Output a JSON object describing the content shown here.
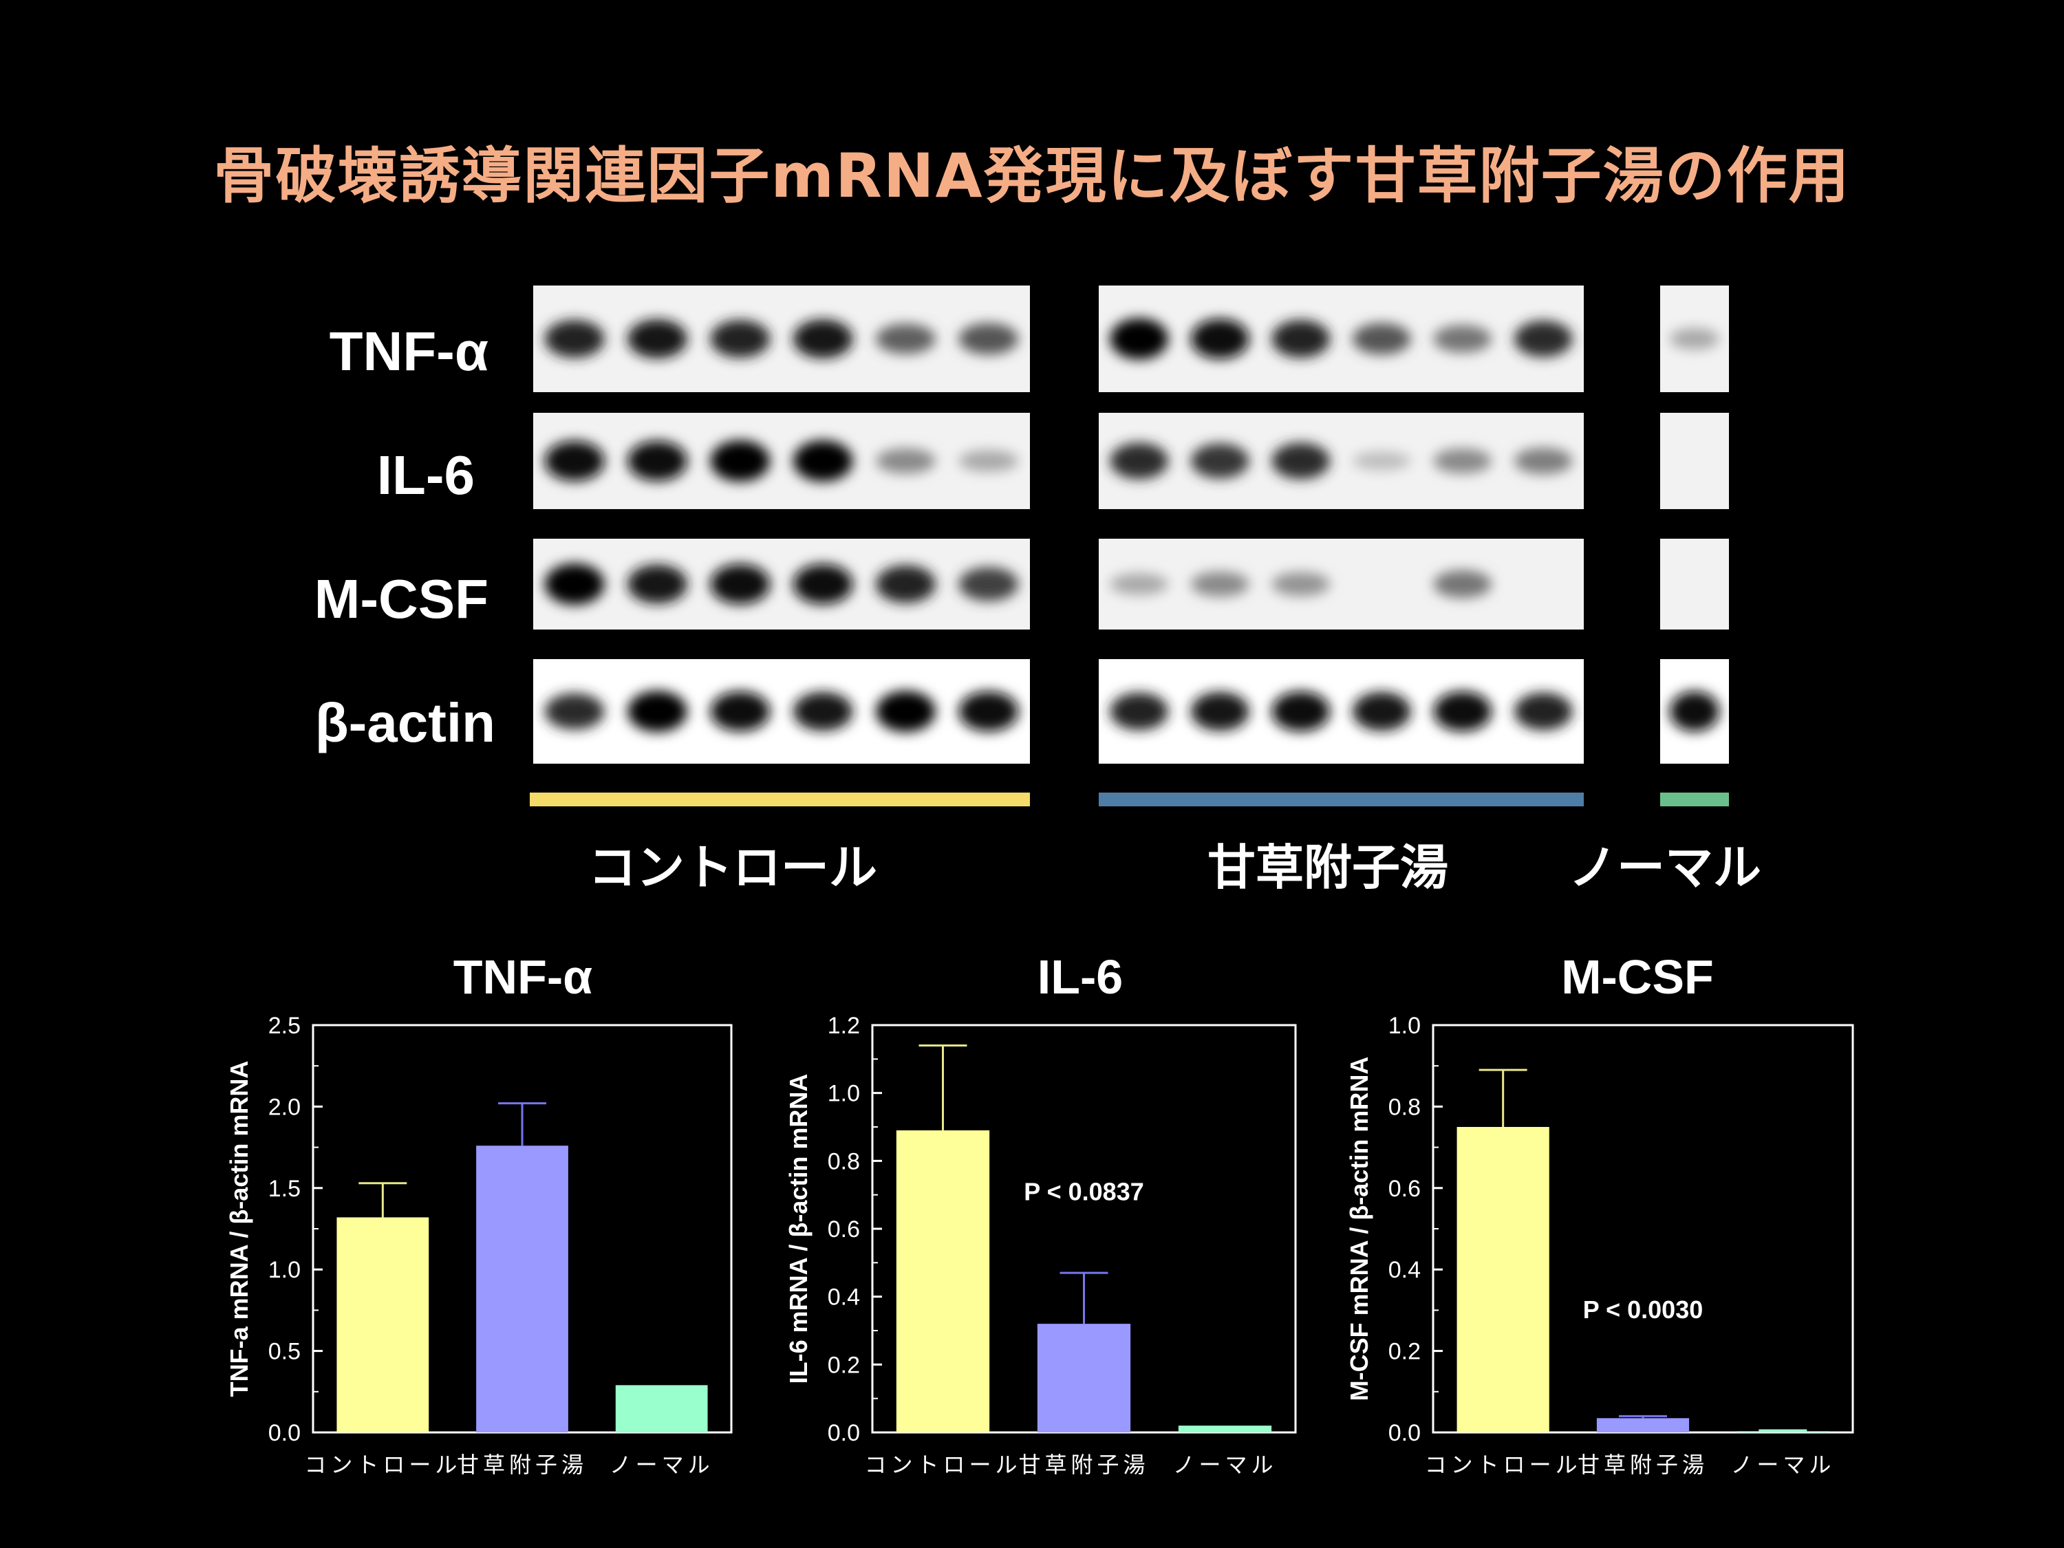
{
  "title": "骨破壊誘導関連因子mRNA発現に及ぼす甘草附子湯の作用",
  "blot": {
    "rows": [
      "TNF-α",
      "IL-6",
      "M-CSF",
      "β-actin"
    ],
    "groups": [
      {
        "label": "コントロール",
        "color": "#f5dc6a"
      },
      {
        "label": "甘草附子湯",
        "color": "#4e7ea5"
      },
      {
        "label": "ノーマル",
        "color": "#6bc089"
      }
    ],
    "band_intensity": {
      "TNF-α": {
        "control": [
          0.85,
          0.9,
          0.85,
          0.9,
          0.55,
          0.6
        ],
        "kanzo": [
          1.0,
          0.95,
          0.85,
          0.6,
          0.45,
          0.8
        ],
        "normal": [
          0.2
        ]
      },
      "IL-6": {
        "control": [
          0.95,
          0.95,
          1.0,
          1.0,
          0.35,
          0.2
        ],
        "kanzo": [
          0.8,
          0.75,
          0.8,
          0.1,
          0.35,
          0.4
        ],
        "normal": [
          0.0
        ]
      },
      "M-CSF": {
        "control": [
          1.0,
          0.9,
          0.95,
          0.95,
          0.85,
          0.7
        ],
        "kanzo": [
          0.2,
          0.35,
          0.3,
          0.0,
          0.45,
          0.0
        ],
        "normal": [
          0.0
        ]
      },
      "β-actin": {
        "control": [
          0.8,
          1.0,
          0.95,
          0.9,
          1.0,
          0.95
        ],
        "kanzo": [
          0.85,
          0.9,
          0.95,
          0.9,
          0.95,
          0.85
        ],
        "normal": [
          0.95
        ]
      }
    }
  },
  "chart_data": [
    {
      "type": "bar",
      "title": "TNF-α",
      "ylabel": "TNF-a mRNA / β-actin mRNA",
      "categories": [
        "コントロール",
        "甘草附子湯",
        "ノーマル"
      ],
      "values": [
        1.32,
        1.76,
        0.29
      ],
      "errors": [
        0.21,
        0.26,
        0
      ],
      "colors": [
        "#ffff99",
        "#9999ff",
        "#99ffcc"
      ],
      "ylim": [
        0,
        2.5
      ],
      "yticks": [
        "0.0",
        "0.5",
        "1.0",
        "1.5",
        "2.0",
        "2.5"
      ],
      "annotation": ""
    },
    {
      "type": "bar",
      "title": "IL-6",
      "ylabel": "IL-6 mRNA / β-actin mRNA",
      "categories": [
        "コントロール",
        "甘草附子湯",
        "ノーマル"
      ],
      "values": [
        0.89,
        0.32,
        0.02
      ],
      "errors": [
        0.25,
        0.15,
        0
      ],
      "colors": [
        "#ffff99",
        "#9999ff",
        "#99ffcc"
      ],
      "ylim": [
        0,
        1.2
      ],
      "yticks": [
        "0.0",
        "0.2",
        "0.4",
        "0.6",
        "0.8",
        "1.0",
        "1.2"
      ],
      "annotation": "P < 0.0837"
    },
    {
      "type": "bar",
      "title": "M-CSF",
      "ylabel": "M-CSF mRNA / β-actin mRNA",
      "categories": [
        "コントロール",
        "甘草附子湯",
        "ノーマル"
      ],
      "values": [
        0.75,
        0.035,
        0.003
      ],
      "errors": [
        0.14,
        0.005,
        0.002
      ],
      "colors": [
        "#ffff99",
        "#9999ff",
        "#99ffcc"
      ],
      "ylim": [
        0,
        1.0
      ],
      "yticks": [
        "0.0",
        "0.2",
        "0.4",
        "0.6",
        "0.8",
        "1.0"
      ],
      "annotation": "P <  0.0030"
    }
  ]
}
